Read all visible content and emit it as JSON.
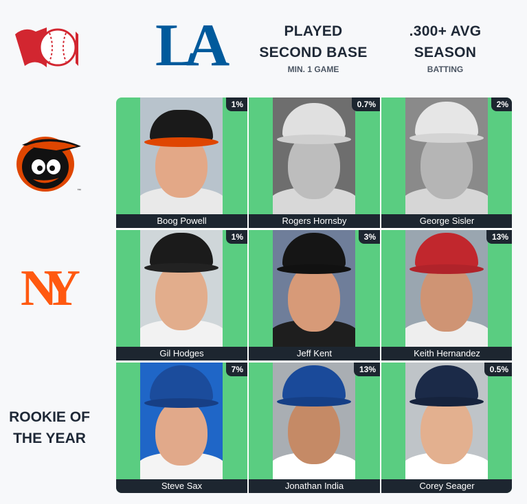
{
  "columns": [
    {
      "logo": "dodgers-la-logo",
      "logo_text": "LA",
      "color": "#005a9c"
    },
    {
      "main": "PLAYED\nSECOND BASE",
      "line1": "PLAYED",
      "line2": "SECOND BASE",
      "sub": "MIN. 1 GAME"
    },
    {
      "line1": ".300+ AVG",
      "line2": "SEASON",
      "sub": "BATTING"
    }
  ],
  "rows": [
    {
      "logo": "orioles-bird-logo",
      "color": "#df4601"
    },
    {
      "logo": "mets-ny-logo",
      "logo_text": "NY",
      "color": "#ff5910"
    },
    {
      "line1": "ROOKIE OF",
      "line2": "THE YEAR"
    }
  ],
  "corner_logo": "baseball-logo",
  "colors": {
    "cell_green": "#5acd81",
    "label_bg": "#1d2630"
  },
  "cells": [
    {
      "name": "Boog Powell",
      "pct": "1%"
    },
    {
      "name": "Rogers Hornsby",
      "pct": "0.7%"
    },
    {
      "name": "George Sisler",
      "pct": "2%"
    },
    {
      "name": "Gil Hodges",
      "pct": "1%"
    },
    {
      "name": "Jeff Kent",
      "pct": "3%"
    },
    {
      "name": "Keith Hernandez",
      "pct": "13%"
    },
    {
      "name": "Steve Sax",
      "pct": "7%"
    },
    {
      "name": "Jonathan India",
      "pct": "13%"
    },
    {
      "name": "Corey Seager",
      "pct": "0.5%"
    }
  ]
}
